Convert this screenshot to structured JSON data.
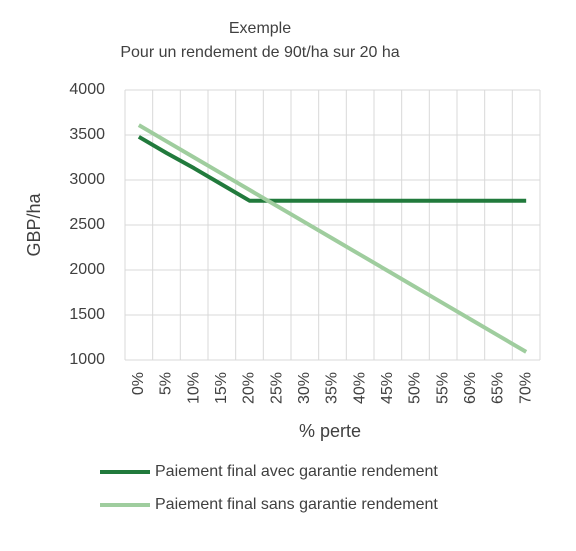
{
  "chart_data": {
    "type": "line",
    "title": "Exemple",
    "subtitle": "Pour un rendement de 90t/ha sur 20 ha",
    "x_label": "% perte",
    "y_label": "GBP/ha",
    "categories": [
      "0%",
      "5%",
      "10%",
      "15%",
      "20%",
      "25%",
      "30%",
      "35%",
      "40%",
      "45%",
      "50%",
      "55%",
      "60%",
      "65%",
      "70%"
    ],
    "series": [
      {
        "name": "Paiement final avec garantie rendement",
        "color": "#217a3c",
        "values": [
          3480,
          3300,
          3130,
          2950,
          2770,
          2770,
          2770,
          2770,
          2770,
          2770,
          2770,
          2770,
          2770,
          2770,
          2770
        ]
      },
      {
        "name": "Paiement final sans garantie rendement",
        "color": "#9fcd9e",
        "values": [
          3610,
          3430,
          3250,
          3070,
          2890,
          2710,
          2530,
          2350,
          2170,
          1990,
          1810,
          1630,
          1450,
          1270,
          1090
        ]
      }
    ],
    "ylim": [
      1000,
      4000
    ],
    "yticks": [
      1000,
      1500,
      2000,
      2500,
      3000,
      3500,
      4000
    ],
    "grid": true,
    "legend": "bottom"
  }
}
